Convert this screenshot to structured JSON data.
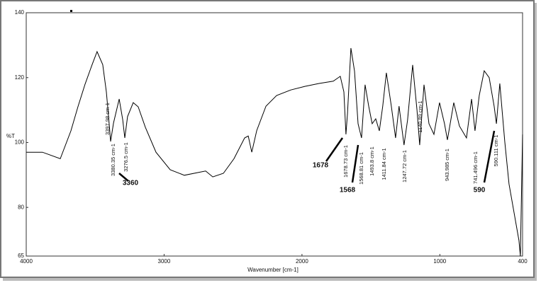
{
  "chart_data": {
    "type": "line",
    "x_label": "Wavenumber [cm-1]",
    "y_label": "%T",
    "xlim": [
      4000,
      400
    ],
    "xticks": [
      4000,
      3000,
      2000,
      1000,
      400
    ],
    "ylim": [
      65,
      140
    ],
    "yticks": [
      65,
      80,
      100,
      120,
      140
    ],
    "grid": false,
    "color": "#000000",
    "x": [
      4000,
      3882,
      3753,
      3676,
      3625,
      3573,
      3522,
      3486,
      3445,
      3419,
      3403,
      3388,
      3367,
      3326,
      3300,
      3285,
      3265,
      3224,
      3188,
      3136,
      3059,
      2956,
      2853,
      2750,
      2699,
      2647,
      2570,
      2493,
      2416,
      2390,
      2364,
      2328,
      2261,
      2184,
      2081,
      1979,
      1876,
      1773,
      1722,
      1696,
      1681,
      1670,
      1645,
      1619,
      1593,
      1568,
      1542,
      1516,
      1491,
      1465,
      1439,
      1414,
      1388,
      1352,
      1321,
      1296,
      1260,
      1234,
      1197,
      1166,
      1146,
      1115,
      1079,
      1043,
      1002,
      966,
      945,
      899,
      858,
      807,
      770,
      745,
      714,
      678,
      642,
      606,
      590,
      565,
      529,
      498,
      462,
      426,
      416,
      400
    ],
    "values": [
      97,
      97,
      95,
      103.6,
      111,
      118,
      124,
      128,
      124,
      115.6,
      108,
      100.3,
      106,
      113.4,
      107,
      101.4,
      108,
      112.3,
      111,
      104.7,
      97,
      91.6,
      89.9,
      90.8,
      91.2,
      89.4,
      90.5,
      95,
      101.4,
      102,
      97,
      103.7,
      111.2,
      114.5,
      116.2,
      117.3,
      118.2,
      118.9,
      120.4,
      115.6,
      102.5,
      109,
      129.1,
      122,
      105.8,
      101.4,
      117.8,
      111.2,
      105.8,
      107.3,
      103.6,
      111.2,
      121.5,
      111.2,
      101.4,
      111.2,
      99.2,
      106.9,
      123.9,
      110,
      99.2,
      117.8,
      105.8,
      102.5,
      112.3,
      105.8,
      100.8,
      112.3,
      105.1,
      101.4,
      113.4,
      103.6,
      114.5,
      122.1,
      120,
      111.2,
      105.8,
      118.2,
      100.3,
      87.2,
      78.5,
      69.8,
      65,
      102.5
    ],
    "annotations": [
      "3397.98 cm-1",
      "3380.35 cm-1",
      "3276.5 cm-1",
      "1678.73 cm-1",
      "1568.81 cm-1",
      "1493.8 cm-1",
      "1411.84 cm-1",
      "1247.72 cm-1",
      "1140.89 cm-1",
      "943.985 cm-1",
      "741.496 cm-1",
      "590.111 cm-1"
    ],
    "callouts": [
      "3360",
      "1678",
      "1568",
      "590"
    ]
  }
}
